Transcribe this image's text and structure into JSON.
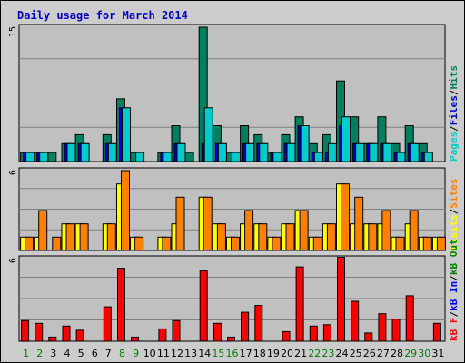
{
  "chart_title": "Daily usage for March 2014",
  "colors": {
    "pages": "#00cccc",
    "files": "#0000cc",
    "hits": "#008060",
    "visits": "#ffff00",
    "sites": "#ff8000",
    "kb_in": "#0000ff",
    "kb_out": "#008000",
    "kb_f": "#ff0000",
    "slash": "#000000",
    "panel": "#c0c0c0"
  },
  "chart_data": [
    {
      "type": "bar",
      "panel": "top",
      "y_tick_label": "15",
      "ylim": [
        0,
        15
      ],
      "legend": [
        {
          "text": "Pages",
          "color": "#00cccc"
        },
        {
          "text": "Files",
          "color": "#0000cc"
        },
        {
          "text": "Hits",
          "color": "#008060"
        }
      ],
      "series": [
        {
          "name": "Hits",
          "values": [
            1,
            1,
            1,
            2,
            3,
            0,
            3,
            7,
            1,
            0,
            1,
            4,
            1,
            15,
            4,
            1,
            4,
            3,
            1,
            3,
            5,
            2,
            3,
            9,
            5,
            2,
            5,
            2,
            4,
            2,
            0
          ]
        },
        {
          "name": "Files",
          "values": [
            1,
            1,
            0,
            2,
            2,
            0,
            2,
            6,
            0,
            0,
            1,
            2,
            0,
            2,
            2,
            0,
            2,
            2,
            1,
            2,
            4,
            1,
            1,
            4,
            2,
            2,
            2,
            1,
            2,
            1,
            0
          ]
        },
        {
          "name": "Pages",
          "values": [
            1,
            1,
            0,
            2,
            2,
            0,
            2,
            6,
            1,
            0,
            1,
            2,
            0,
            6,
            2,
            1,
            2,
            2,
            1,
            2,
            4,
            1,
            2,
            5,
            2,
            2,
            2,
            1,
            2,
            1,
            0
          ]
        }
      ]
    },
    {
      "type": "bar",
      "panel": "middle",
      "y_tick_label": "6",
      "ylim": [
        0,
        6
      ],
      "legend": [
        {
          "text": "Visits",
          "color": "#ffff00"
        },
        {
          "text": "Sites",
          "color": "#ff8000"
        }
      ],
      "series": [
        {
          "name": "Visits",
          "values": [
            1,
            1,
            0,
            2,
            2,
            0,
            2,
            5,
            1,
            0,
            1,
            2,
            0,
            4,
            2,
            1,
            2,
            2,
            1,
            2,
            3,
            1,
            2,
            5,
            2,
            2,
            2,
            1,
            2,
            1,
            1
          ]
        },
        {
          "name": "Sites",
          "values": [
            1,
            3,
            1,
            2,
            2,
            0,
            2,
            6,
            1,
            0,
            1,
            4,
            0,
            4,
            2,
            1,
            3,
            2,
            1,
            2,
            3,
            1,
            2,
            5,
            4,
            2,
            3,
            1,
            3,
            1,
            1
          ]
        }
      ]
    },
    {
      "type": "bar",
      "panel": "bottom",
      "y_tick_label": "6",
      "ylim": [
        0,
        6
      ],
      "legend": [
        {
          "text": "kB F",
          "color": "#ff0000"
        },
        {
          "text": "kB In",
          "color": "#0000ff"
        },
        {
          "text": "kB Out",
          "color": "#008000"
        }
      ],
      "series": [
        {
          "name": "kB F",
          "values": [
            1.5,
            1.3,
            0.3,
            1.1,
            0.8,
            0,
            2.5,
            5.3,
            0.3,
            0,
            0.9,
            1.5,
            0,
            5.1,
            1.3,
            0.3,
            2.1,
            2.6,
            0,
            0.7,
            5.4,
            1.1,
            1.2,
            6.1,
            2.9,
            0.6,
            2.0,
            1.6,
            3.3,
            0,
            1.3
          ]
        }
      ]
    }
  ],
  "x_labels": [
    "1",
    "2",
    "3",
    "4",
    "5",
    "6",
    "7",
    "8",
    "9",
    "10",
    "11",
    "12",
    "13",
    "14",
    "15",
    "16",
    "17",
    "18",
    "19",
    "20",
    "21",
    "22",
    "23",
    "24",
    "25",
    "26",
    "27",
    "28",
    "29",
    "30",
    "31"
  ],
  "weekend_days": [
    1,
    2,
    8,
    9,
    15,
    16,
    22,
    23,
    29,
    30
  ],
  "weekend_label_color": "#008000",
  "weekday_label_color": "#000000"
}
